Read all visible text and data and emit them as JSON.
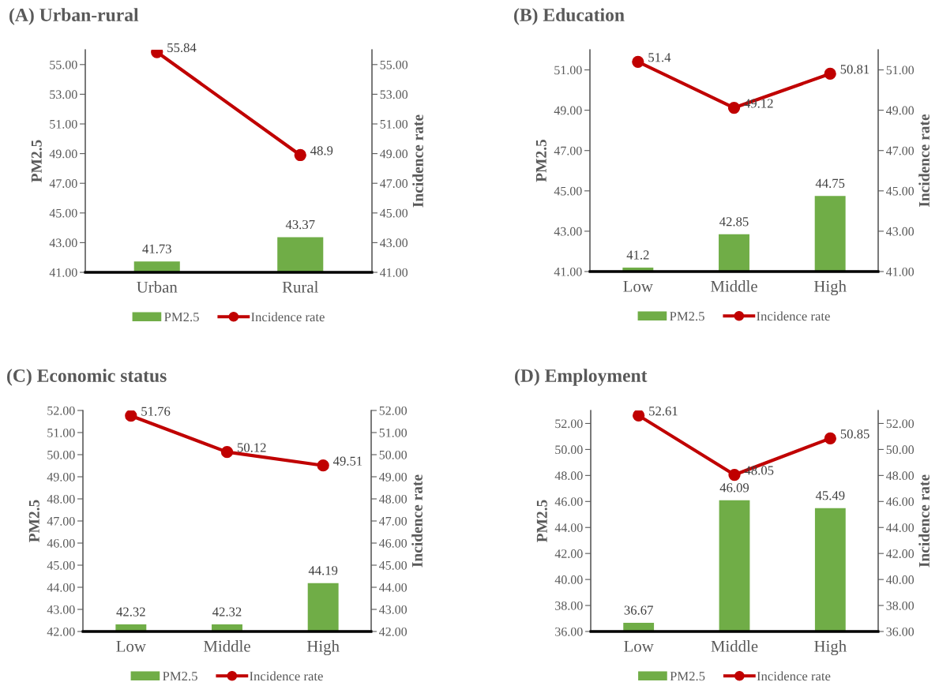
{
  "chart_data": [
    {
      "type": "bar",
      "title": "(A) Urban-rural",
      "ylabel": "PM2.5",
      "y2label": "Incidence rate",
      "categories": [
        "Urban",
        "Rural"
      ],
      "series": [
        {
          "name": "PM2.5",
          "color": "#70ad47",
          "values": [
            41.73,
            43.37
          ]
        },
        {
          "name": "Incidence rate",
          "type": "line",
          "color": "#c00000",
          "values": [
            55.84,
            48.9
          ]
        }
      ],
      "ylim": [
        41,
        56
      ],
      "yticks": [
        {
          "value": 41,
          "label": "41.00"
        },
        {
          "value": 43,
          "label": "43.00"
        },
        {
          "value": 45,
          "label": "45.00"
        },
        {
          "value": 47,
          "label": "47.00"
        },
        {
          "value": 49,
          "label": "49.00"
        },
        {
          "value": 51,
          "label": "51.00"
        },
        {
          "value": 53,
          "label": "53.00"
        },
        {
          "value": 55,
          "label": "55.00"
        }
      ],
      "y2lim": [
        41,
        56
      ],
      "y2ticks": [
        {
          "value": 41,
          "label": "41.00"
        },
        {
          "value": 43,
          "label": "43.00"
        },
        {
          "value": 45,
          "label": "45.00"
        },
        {
          "value": 47,
          "label": "47.00"
        },
        {
          "value": 49,
          "label": "49.00"
        },
        {
          "value": 51,
          "label": "51.00"
        },
        {
          "value": 53,
          "label": "53.00"
        },
        {
          "value": 55,
          "label": "55.00"
        }
      ],
      "data_labels": true,
      "legend": "bottom",
      "marker": "circle",
      "grid": false
    },
    {
      "type": "bar",
      "title": "(B) Education",
      "ylabel": "PM2.5",
      "y2label": "Incidence rate",
      "categories": [
        "Low",
        "Middle",
        "High"
      ],
      "series": [
        {
          "name": "PM2.5",
          "color": "#70ad47",
          "values": [
            41.2,
            42.85,
            44.75
          ]
        },
        {
          "name": "Incidence rate",
          "type": "line",
          "color": "#c00000",
          "values": [
            51.4,
            49.12,
            50.81
          ]
        }
      ],
      "ylim": [
        41,
        52
      ],
      "yticks": [
        {
          "value": 41,
          "label": "41.00"
        },
        {
          "value": 43,
          "label": "43.00"
        },
        {
          "value": 45,
          "label": "45.00"
        },
        {
          "value": 47,
          "label": "47.00"
        },
        {
          "value": 49,
          "label": "49.00"
        },
        {
          "value": 51,
          "label": "51.00"
        }
      ],
      "y2lim": [
        41,
        52
      ],
      "y2ticks": [
        {
          "value": 41,
          "label": "41.00"
        },
        {
          "value": 43,
          "label": "43.00"
        },
        {
          "value": 45,
          "label": "45.00"
        },
        {
          "value": 47,
          "label": "47.00"
        },
        {
          "value": 49,
          "label": "49.00"
        },
        {
          "value": 51,
          "label": "51.00"
        }
      ],
      "data_labels": true,
      "legend": "bottom",
      "marker": "circle",
      "grid": false
    },
    {
      "type": "bar",
      "title": "(C) Economic status",
      "ylabel": "PM2.5",
      "y2label": "Incidence rate",
      "categories": [
        "Low",
        "Middle",
        "High"
      ],
      "series": [
        {
          "name": "PM2.5",
          "color": "#70ad47",
          "values": [
            42.32,
            42.32,
            44.19
          ]
        },
        {
          "name": "Incidence rate",
          "type": "line",
          "color": "#c00000",
          "values": [
            51.76,
            50.12,
            49.51
          ]
        }
      ],
      "ylim": [
        42,
        52
      ],
      "yticks": [
        {
          "value": 42,
          "label": "42.00"
        },
        {
          "value": 43,
          "label": "43.00"
        },
        {
          "value": 44,
          "label": "44.00"
        },
        {
          "value": 45,
          "label": "45.00"
        },
        {
          "value": 46,
          "label": "46.00"
        },
        {
          "value": 47,
          "label": "47.00"
        },
        {
          "value": 48,
          "label": "48.00"
        },
        {
          "value": 49,
          "label": "49.00"
        },
        {
          "value": 50,
          "label": "50.00"
        },
        {
          "value": 51,
          "label": "51.00"
        },
        {
          "value": 52,
          "label": "52.00"
        }
      ],
      "y2lim": [
        42,
        52
      ],
      "y2ticks": [
        {
          "value": 42,
          "label": "42.00"
        },
        {
          "value": 43,
          "label": "43.00"
        },
        {
          "value": 44,
          "label": "44.00"
        },
        {
          "value": 45,
          "label": "45.00"
        },
        {
          "value": 46,
          "label": "46.00"
        },
        {
          "value": 47,
          "label": "47.00"
        },
        {
          "value": 48,
          "label": "48.00"
        },
        {
          "value": 49,
          "label": "49.00"
        },
        {
          "value": 50,
          "label": "50.00"
        },
        {
          "value": 51,
          "label": "51.00"
        },
        {
          "value": 52,
          "label": "52.00"
        }
      ],
      "data_labels": true,
      "legend": "bottom",
      "marker": "circle",
      "grid": false
    },
    {
      "type": "bar",
      "title": "(D) Employment",
      "ylabel": "PM2.5",
      "y2label": "Incidence rate",
      "categories": [
        "Low",
        "Middle",
        "High"
      ],
      "series": [
        {
          "name": "PM2.5",
          "color": "#70ad47",
          "values": [
            36.67,
            46.09,
            45.49
          ]
        },
        {
          "name": "Incidence rate",
          "type": "line",
          "color": "#c00000",
          "values": [
            52.61,
            48.05,
            50.85
          ]
        }
      ],
      "ylim": [
        36,
        53
      ],
      "yticks": [
        {
          "value": 36,
          "label": "36.00"
        },
        {
          "value": 38,
          "label": "38.00"
        },
        {
          "value": 40,
          "label": "40.00"
        },
        {
          "value": 42,
          "label": "42.00"
        },
        {
          "value": 44,
          "label": "44.00"
        },
        {
          "value": 46,
          "label": "46.00"
        },
        {
          "value": 48,
          "label": "48.00"
        },
        {
          "value": 50,
          "label": "50.00"
        },
        {
          "value": 52,
          "label": "52.00"
        }
      ],
      "y2lim": [
        36,
        53
      ],
      "y2ticks": [
        {
          "value": 36,
          "label": "36.00"
        },
        {
          "value": 38,
          "label": "38.00"
        },
        {
          "value": 40,
          "label": "40.00"
        },
        {
          "value": 42,
          "label": "42.00"
        },
        {
          "value": 44,
          "label": "44.00"
        },
        {
          "value": 46,
          "label": "46.00"
        },
        {
          "value": 48,
          "label": "48.00"
        },
        {
          "value": 50,
          "label": "50.00"
        },
        {
          "value": 52,
          "label": "52.00"
        }
      ],
      "data_labels": true,
      "legend": "bottom",
      "marker": "circle",
      "grid": false
    }
  ]
}
